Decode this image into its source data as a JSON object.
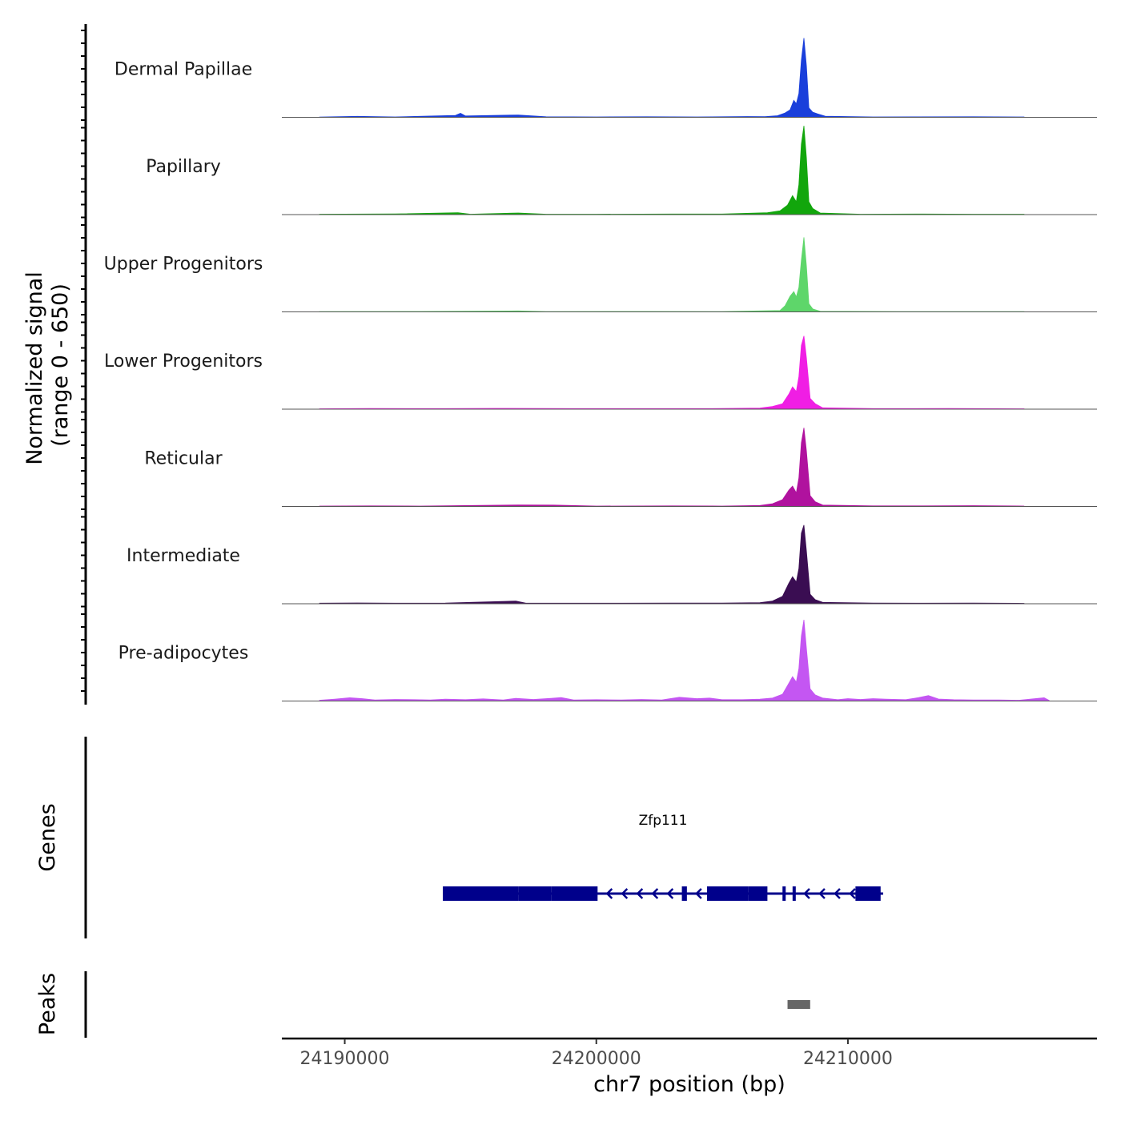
{
  "chart_data": {
    "type": "area",
    "chromosome": "chr7",
    "xlabel": "chr7 position (bp)",
    "ylabel_line1": "Normalized signal",
    "ylabel_line2": "(range 0 - 650)",
    "xlim": [
      24187500,
      24219900
    ],
    "ylim": [
      0,
      650
    ],
    "x_ticks": [
      24190000,
      24200000,
      24210000
    ],
    "x_tick_labels": [
      "24190000",
      "24200000",
      "24210000"
    ],
    "tracks": [
      {
        "name": "Dermal Papillae",
        "color": "#1a3fdb",
        "points": [
          [
            24189000,
            2
          ],
          [
            24190500,
            7
          ],
          [
            24192000,
            3
          ],
          [
            24194400,
            14
          ],
          [
            24194600,
            30
          ],
          [
            24194800,
            10
          ],
          [
            24196900,
            17
          ],
          [
            24198000,
            4
          ],
          [
            24200000,
            3
          ],
          [
            24202000,
            4
          ],
          [
            24204000,
            3
          ],
          [
            24206000,
            6
          ],
          [
            24206700,
            5
          ],
          [
            24207200,
            12
          ],
          [
            24207500,
            32
          ],
          [
            24207700,
            55
          ],
          [
            24207850,
            125
          ],
          [
            24207950,
            100
          ],
          [
            24208050,
            175
          ],
          [
            24208150,
            420
          ],
          [
            24208250,
            585
          ],
          [
            24208350,
            380
          ],
          [
            24208450,
            70
          ],
          [
            24208600,
            38
          ],
          [
            24208800,
            25
          ],
          [
            24209100,
            8
          ],
          [
            24211000,
            3
          ],
          [
            24215000,
            4
          ],
          [
            24217000,
            3
          ]
        ]
      },
      {
        "name": "Papillary",
        "color": "#12a60c",
        "points": [
          [
            24189000,
            3
          ],
          [
            24192000,
            5
          ],
          [
            24194500,
            14
          ],
          [
            24195000,
            3
          ],
          [
            24196900,
            12
          ],
          [
            24198000,
            3
          ],
          [
            24200000,
            3
          ],
          [
            24203000,
            4
          ],
          [
            24205000,
            4
          ],
          [
            24206800,
            14
          ],
          [
            24207300,
            28
          ],
          [
            24207600,
            70
          ],
          [
            24207800,
            140
          ],
          [
            24207950,
            95
          ],
          [
            24208050,
            220
          ],
          [
            24208150,
            520
          ],
          [
            24208250,
            655
          ],
          [
            24208350,
            420
          ],
          [
            24208450,
            95
          ],
          [
            24208600,
            45
          ],
          [
            24208900,
            12
          ],
          [
            24210500,
            3
          ],
          [
            24213000,
            4
          ],
          [
            24215000,
            3
          ],
          [
            24217000,
            3
          ]
        ]
      },
      {
        "name": "Upper Progenitors",
        "color": "#5ed66a",
        "points": [
          [
            24189000,
            2
          ],
          [
            24193000,
            3
          ],
          [
            24196900,
            7
          ],
          [
            24198000,
            2
          ],
          [
            24202000,
            3
          ],
          [
            24205000,
            2
          ],
          [
            24207300,
            10
          ],
          [
            24207500,
            45
          ],
          [
            24207700,
            115
          ],
          [
            24207850,
            150
          ],
          [
            24207950,
            110
          ],
          [
            24208050,
            180
          ],
          [
            24208150,
            380
          ],
          [
            24208250,
            550
          ],
          [
            24208350,
            340
          ],
          [
            24208450,
            60
          ],
          [
            24208600,
            22
          ],
          [
            24208900,
            4
          ],
          [
            24212000,
            2
          ],
          [
            24217000,
            2
          ]
        ]
      },
      {
        "name": "Lower Progenitors",
        "color": "#f01ee4",
        "points": [
          [
            24189000,
            3
          ],
          [
            24191000,
            5
          ],
          [
            24194000,
            4
          ],
          [
            24196000,
            6
          ],
          [
            24199000,
            4
          ],
          [
            24202000,
            4
          ],
          [
            24205000,
            5
          ],
          [
            24206500,
            8
          ],
          [
            24207000,
            20
          ],
          [
            24207400,
            40
          ],
          [
            24207650,
            110
          ],
          [
            24207800,
            165
          ],
          [
            24207950,
            130
          ],
          [
            24208050,
            240
          ],
          [
            24208150,
            470
          ],
          [
            24208250,
            540
          ],
          [
            24208350,
            380
          ],
          [
            24208500,
            80
          ],
          [
            24208700,
            40
          ],
          [
            24209000,
            10
          ],
          [
            24211000,
            4
          ],
          [
            24214000,
            5
          ],
          [
            24217000,
            3
          ]
        ]
      },
      {
        "name": "Reticular",
        "color": "#b0129e",
        "points": [
          [
            24189000,
            3
          ],
          [
            24191000,
            4
          ],
          [
            24193000,
            3
          ],
          [
            24196900,
            11
          ],
          [
            24198300,
            10
          ],
          [
            24200000,
            3
          ],
          [
            24203000,
            4
          ],
          [
            24205000,
            3
          ],
          [
            24206500,
            7
          ],
          [
            24207000,
            20
          ],
          [
            24207400,
            50
          ],
          [
            24207650,
            120
          ],
          [
            24207800,
            150
          ],
          [
            24207950,
            100
          ],
          [
            24208050,
            210
          ],
          [
            24208150,
            470
          ],
          [
            24208250,
            580
          ],
          [
            24208350,
            410
          ],
          [
            24208500,
            80
          ],
          [
            24208700,
            35
          ],
          [
            24209000,
            10
          ],
          [
            24211000,
            4
          ],
          [
            24213000,
            4
          ],
          [
            24215000,
            6
          ],
          [
            24217000,
            3
          ]
        ]
      },
      {
        "name": "Intermediate",
        "color": "#3a0d52",
        "points": [
          [
            24189000,
            4
          ],
          [
            24190500,
            6
          ],
          [
            24192000,
            4
          ],
          [
            24194000,
            5
          ],
          [
            24196800,
            20
          ],
          [
            24197200,
            4
          ],
          [
            24199000,
            4
          ],
          [
            24201000,
            4
          ],
          [
            24203000,
            5
          ],
          [
            24205000,
            5
          ],
          [
            24206500,
            8
          ],
          [
            24207000,
            20
          ],
          [
            24207400,
            55
          ],
          [
            24207650,
            150
          ],
          [
            24207800,
            200
          ],
          [
            24207950,
            160
          ],
          [
            24208050,
            260
          ],
          [
            24208150,
            520
          ],
          [
            24208250,
            580
          ],
          [
            24208350,
            390
          ],
          [
            24208500,
            70
          ],
          [
            24208700,
            30
          ],
          [
            24209000,
            10
          ],
          [
            24211000,
            5
          ],
          [
            24213000,
            4
          ],
          [
            24215000,
            5
          ],
          [
            24217000,
            3
          ]
        ]
      },
      {
        "name": "Pre-adipocytes",
        "color": "#c456f2",
        "points": [
          [
            24189000,
            6
          ],
          [
            24189600,
            14
          ],
          [
            24190200,
            24
          ],
          [
            24190700,
            18
          ],
          [
            24191200,
            8
          ],
          [
            24192000,
            12
          ],
          [
            24192800,
            10
          ],
          [
            24193400,
            8
          ],
          [
            24194000,
            14
          ],
          [
            24194800,
            10
          ],
          [
            24195500,
            16
          ],
          [
            24196300,
            8
          ],
          [
            24196800,
            20
          ],
          [
            24197500,
            12
          ],
          [
            24198200,
            20
          ],
          [
            24198600,
            26
          ],
          [
            24199100,
            8
          ],
          [
            24200000,
            10
          ],
          [
            24201000,
            8
          ],
          [
            24201800,
            12
          ],
          [
            24202600,
            8
          ],
          [
            24203300,
            28
          ],
          [
            24204000,
            18
          ],
          [
            24204500,
            22
          ],
          [
            24205000,
            10
          ],
          [
            24205800,
            10
          ],
          [
            24206500,
            14
          ],
          [
            24207000,
            22
          ],
          [
            24207400,
            50
          ],
          [
            24207650,
            130
          ],
          [
            24207800,
            180
          ],
          [
            24207950,
            140
          ],
          [
            24208050,
            240
          ],
          [
            24208150,
            480
          ],
          [
            24208250,
            600
          ],
          [
            24208350,
            390
          ],
          [
            24208500,
            90
          ],
          [
            24208700,
            45
          ],
          [
            24209000,
            22
          ],
          [
            24209600,
            10
          ],
          [
            24210000,
            18
          ],
          [
            24210500,
            12
          ],
          [
            24211000,
            18
          ],
          [
            24211500,
            14
          ],
          [
            24212300,
            10
          ],
          [
            24212800,
            25
          ],
          [
            24213200,
            40
          ],
          [
            24213600,
            15
          ],
          [
            24214200,
            10
          ],
          [
            24215000,
            8
          ],
          [
            24216000,
            8
          ],
          [
            24216800,
            6
          ],
          [
            24217800,
            24
          ],
          [
            24218000,
            4
          ]
        ]
      }
    ],
    "genes": [
      {
        "name": "Zfp111",
        "strand": "-",
        "start": 24193900,
        "end": 24211400,
        "exons": [
          [
            24193900,
            24196900
          ],
          [
            24196900,
            24198200
          ],
          [
            24198200,
            24200050
          ],
          [
            24203400,
            24203600
          ],
          [
            24204400,
            24206050
          ],
          [
            24206050,
            24206800
          ],
          [
            24207400,
            24207500
          ],
          [
            24207800,
            24207900
          ],
          [
            24210300,
            24211300
          ]
        ]
      }
    ],
    "peaks": [
      [
        24207600,
        24208500
      ]
    ]
  },
  "panels": {
    "genes_label": "Genes",
    "peaks_label": "Peaks"
  },
  "colors": {
    "gene": "#00008b",
    "peak": "#666666",
    "baseline": "#555555",
    "axis": "#000000"
  }
}
